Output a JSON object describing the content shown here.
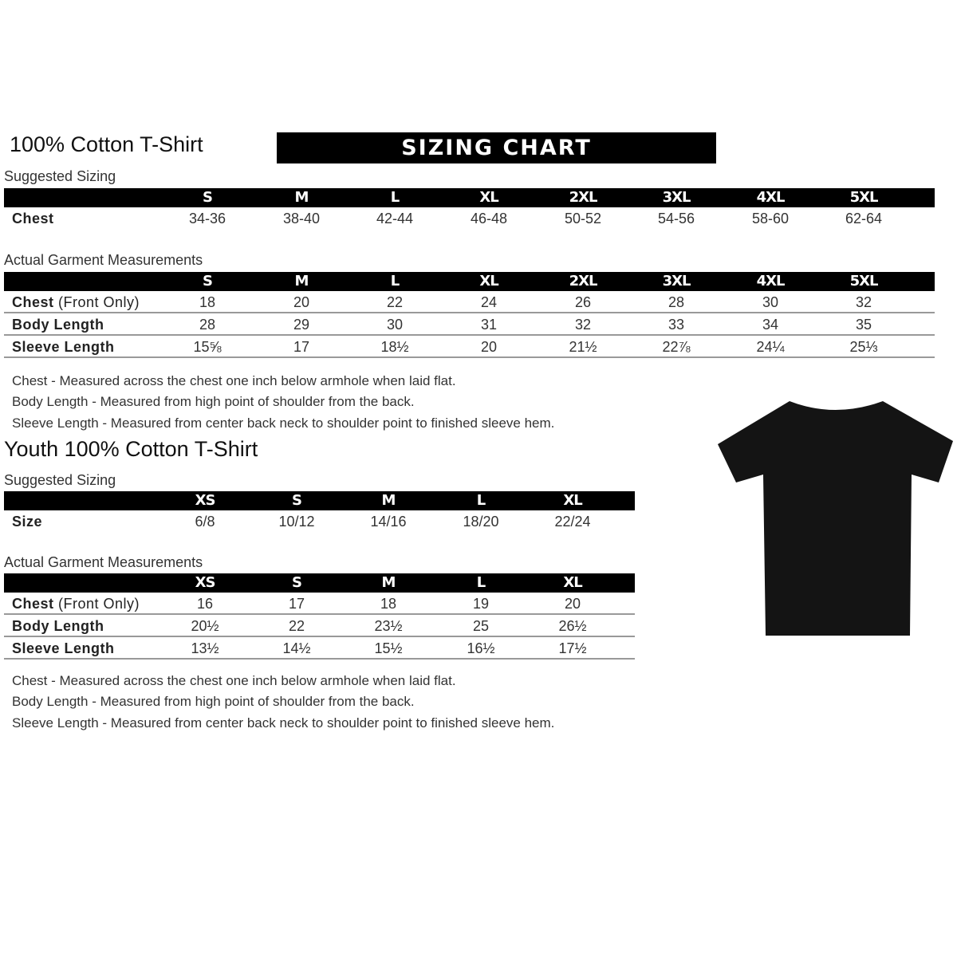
{
  "banner": "SIZING CHART",
  "adult": {
    "title": "100% Cotton T-Shirt",
    "suggested_label": "Suggested Sizing",
    "sizes": [
      "S",
      "M",
      "L",
      "XL",
      "2XL",
      "3XL",
      "4XL",
      "5XL"
    ],
    "suggested_rows": [
      {
        "label": "Chest",
        "values": [
          "34-36",
          "38-40",
          "42-44",
          "46-48",
          "50-52",
          "54-56",
          "58-60",
          "62-64"
        ]
      }
    ],
    "actual_label": "Actual Garment Measurements",
    "actual_rows": [
      {
        "label": "Chest",
        "label_extra": " (Front Only)",
        "values": [
          "18",
          "20",
          "22",
          "24",
          "26",
          "28",
          "30",
          "32"
        ]
      },
      {
        "label": "Body Length",
        "values": [
          "28",
          "29",
          "30",
          "31",
          "32",
          "33",
          "34",
          "35"
        ]
      },
      {
        "label": "Sleeve Length",
        "values": [
          "15⅝",
          "17",
          "18½",
          "20",
          "21½",
          "22⅞",
          "24¼",
          "25⅓"
        ]
      }
    ],
    "notes": [
      "Chest - Measured across the chest one inch below armhole when laid flat.",
      "Body Length - Measured from high point of shoulder from the back.",
      "Sleeve Length - Measured from center back neck to shoulder point to finished sleeve hem."
    ]
  },
  "youth": {
    "title": "Youth 100% Cotton T-Shirt",
    "suggested_label": "Suggested Sizing",
    "sizes": [
      "XS",
      "S",
      "M",
      "L",
      "XL"
    ],
    "suggested_rows": [
      {
        "label": "Size",
        "values": [
          "6/8",
          "10/12",
          "14/16",
          "18/20",
          "22/24"
        ]
      }
    ],
    "actual_label": "Actual Garment Measurements",
    "actual_rows": [
      {
        "label": "Chest",
        "label_extra": " (Front Only)",
        "values": [
          "16",
          "17",
          "18",
          "19",
          "20"
        ]
      },
      {
        "label": "Body Length",
        "values": [
          "20½",
          "22",
          "23½",
          "25",
          "26½"
        ]
      },
      {
        "label": "Sleeve Length",
        "values": [
          "13½",
          "14½",
          "15½",
          "16½",
          "17½"
        ]
      }
    ],
    "notes": [
      "Chest - Measured across the chest one inch below armhole when laid flat.",
      "Body Length - Measured from high point of shoulder from the back.",
      "Sleeve Length - Measured from center back neck to shoulder point to finished sleeve hem."
    ]
  },
  "shirt_color": "#141414"
}
